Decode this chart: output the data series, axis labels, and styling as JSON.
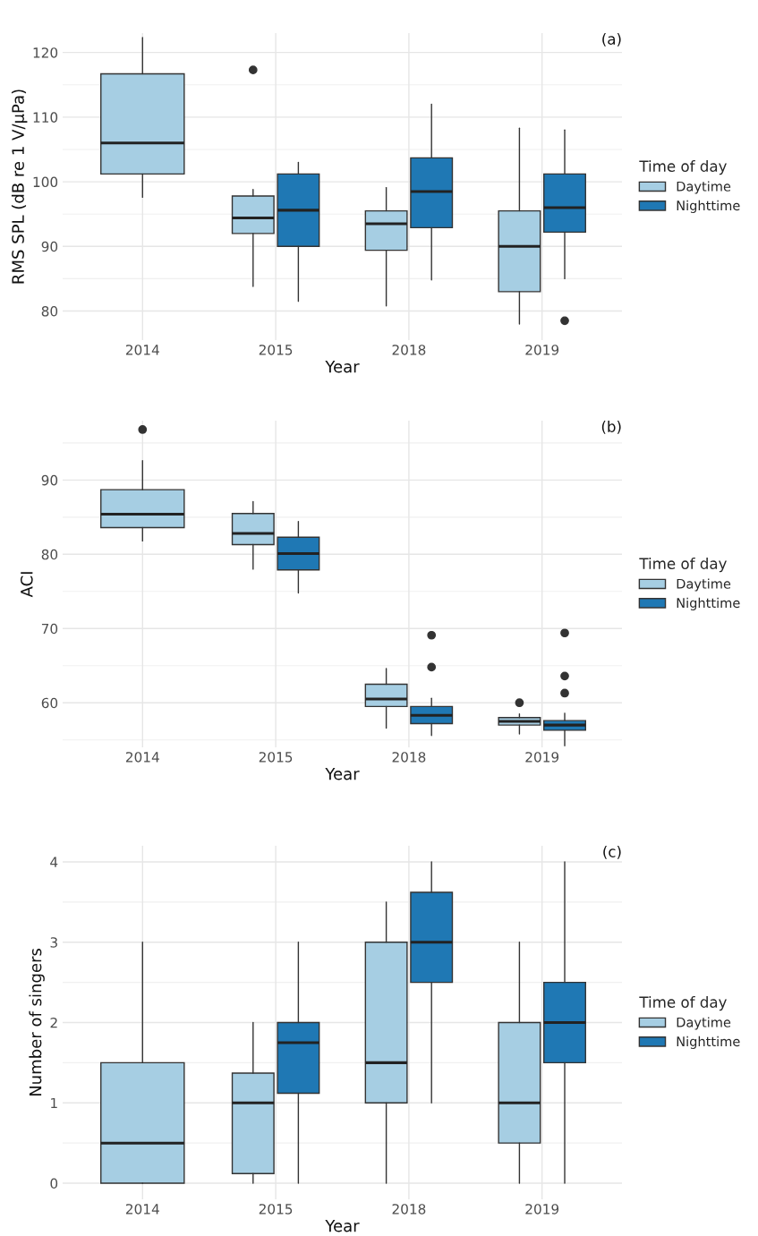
{
  "chart_data": [
    {
      "type": "box",
      "ylabel": "RMS SPL (dB re 1 V/μPa)",
      "xlabel": "Year",
      "legend_title": "Time of day",
      "legend": "right",
      "grid": true,
      "annotations": [
        "(a)"
      ],
      "categories": [
        "2014",
        "2015",
        "2018",
        "2019"
      ],
      "ylim": [
        75.5,
        123
      ],
      "yticks": [
        80,
        90,
        100,
        110,
        120
      ],
      "series": [
        {
          "name": "Daytime",
          "color": "#a6cee3",
          "boxes": [
            {
              "low": 97.6,
              "q1": 101.2,
              "median": 106,
              "q3": 116.7,
              "high": 122.3
            },
            {
              "low": 83.8,
              "q1": 92,
              "median": 94.4,
              "q3": 97.8,
              "high": 98.8,
              "outliers": [
                117.3
              ]
            },
            {
              "low": 80.8,
              "q1": 89.4,
              "median": 93.5,
              "q3": 95.5,
              "high": 99.1
            },
            {
              "low": 78,
              "q1": 83,
              "median": 90,
              "q3": 95.5,
              "high": 108.3
            }
          ]
        },
        {
          "name": "Nighttime",
          "color": "#1f78b4",
          "boxes": [
            null,
            {
              "low": 81.5,
              "q1": 90,
              "median": 95.6,
              "q3": 101.2,
              "high": 103
            },
            {
              "low": 84.8,
              "q1": 92.9,
              "median": 98.5,
              "q3": 103.7,
              "high": 112
            },
            {
              "low": 85,
              "q1": 92.2,
              "median": 96,
              "q3": 101.2,
              "high": 108,
              "outliers": [
                78.5
              ]
            }
          ]
        }
      ]
    },
    {
      "type": "box",
      "ylabel": "ACI",
      "xlabel": "Year",
      "legend_title": "Time of day",
      "legend": "right",
      "grid": true,
      "annotations": [
        "(b)"
      ],
      "categories": [
        "2014",
        "2015",
        "2018",
        "2019"
      ],
      "ylim": [
        54,
        98
      ],
      "yticks": [
        60,
        70,
        80,
        90
      ],
      "series": [
        {
          "name": "Daytime",
          "color": "#a6cee3",
          "boxes": [
            {
              "low": 81.8,
              "q1": 83.6,
              "median": 85.4,
              "q3": 88.7,
              "high": 92.6,
              "outliers": [
                96.8
              ]
            },
            {
              "low": 78,
              "q1": 81.3,
              "median": 82.8,
              "q3": 85.5,
              "high": 87.1
            },
            {
              "low": 56.6,
              "q1": 59.5,
              "median": 60.5,
              "q3": 62.5,
              "high": 64.6
            },
            {
              "low": 55.8,
              "q1": 57,
              "median": 57.5,
              "q3": 58,
              "high": 58.5,
              "outliers": [
                60
              ]
            }
          ]
        },
        {
          "name": "Nighttime",
          "color": "#1f78b4",
          "boxes": [
            null,
            {
              "low": 74.8,
              "q1": 77.9,
              "median": 80.1,
              "q3": 82.3,
              "high": 84.4
            },
            {
              "low": 55.6,
              "q1": 57.2,
              "median": 58.3,
              "q3": 59.5,
              "high": 60.6,
              "outliers": [
                64.8,
                69.1
              ]
            },
            {
              "low": 54.2,
              "q1": 56.3,
              "median": 57,
              "q3": 57.6,
              "high": 58.6,
              "outliers": [
                61.3,
                63.6,
                69.4
              ]
            }
          ]
        }
      ]
    },
    {
      "type": "box",
      "ylabel": "Number of singers",
      "xlabel": "Year",
      "legend_title": "Time of day",
      "legend": "right",
      "grid": true,
      "annotations": [
        "(c)"
      ],
      "categories": [
        "2014",
        "2015",
        "2018",
        "2019"
      ],
      "ylim": [
        -0.2,
        4.2
      ],
      "yticks": [
        0,
        1,
        2,
        3,
        4
      ],
      "series": [
        {
          "name": "Daytime",
          "color": "#a6cee3",
          "boxes": [
            {
              "low": 0,
              "q1": 0,
              "median": 0.5,
              "q3": 1.5,
              "high": 3
            },
            {
              "low": 0,
              "q1": 0.12,
              "median": 1,
              "q3": 1.37,
              "high": 2
            },
            {
              "low": 0,
              "q1": 1,
              "median": 1.5,
              "q3": 3,
              "high": 3.5
            },
            {
              "low": 0,
              "q1": 0.5,
              "median": 1,
              "q3": 2,
              "high": 3
            }
          ]
        },
        {
          "name": "Nighttime",
          "color": "#1f78b4",
          "boxes": [
            null,
            {
              "low": 0,
              "q1": 1.12,
              "median": 1.75,
              "q3": 2,
              "high": 3
            },
            {
              "low": 1,
              "q1": 2.5,
              "median": 3,
              "q3": 3.62,
              "high": 4
            },
            {
              "low": 0,
              "q1": 1.5,
              "median": 2,
              "q3": 2.5,
              "high": 4
            }
          ]
        }
      ]
    }
  ]
}
